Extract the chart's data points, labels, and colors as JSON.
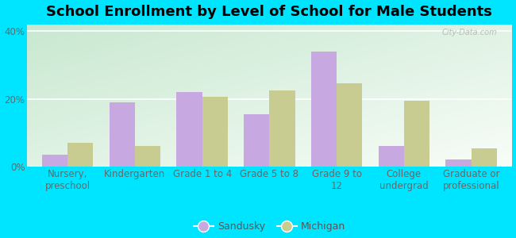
{
  "title": "School Enrollment by Level of School for Male Students",
  "categories": [
    "Nursery,\npreschool",
    "Kindergarten",
    "Grade 1 to 4",
    "Grade 5 to 8",
    "Grade 9 to\n12",
    "College\nundergrad",
    "Graduate or\nprofessional"
  ],
  "sandusky_values": [
    3.5,
    19.0,
    22.0,
    15.5,
    34.0,
    6.0,
    2.0
  ],
  "michigan_values": [
    7.0,
    6.0,
    20.5,
    22.5,
    24.5,
    19.5,
    5.5
  ],
  "sandusky_color": "#c8a8e0",
  "michigan_color": "#c8cc90",
  "background_outer": "#00e5ff",
  "gradient_top_left": "#c8e8d0",
  "gradient_bottom_right": "#f8fdf8",
  "ylim": [
    0,
    42
  ],
  "yticks": [
    0,
    20,
    40
  ],
  "ytick_labels": [
    "0%",
    "20%",
    "40%"
  ],
  "bar_width": 0.38,
  "title_fontsize": 13,
  "tick_fontsize": 8.5,
  "legend_fontsize": 9,
  "watermark": "City-Data.com"
}
